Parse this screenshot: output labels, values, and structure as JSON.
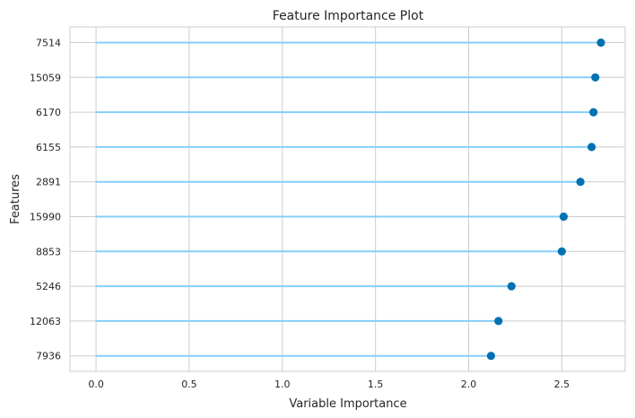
{
  "chart_data": {
    "type": "lollipop",
    "orientation": "horizontal",
    "title": "Feature Importance Plot",
    "xlabel": "Variable Importance",
    "ylabel": "Features",
    "xlim": [
      -0.14,
      2.84
    ],
    "x_ticks": [
      0.0,
      0.5,
      1.0,
      1.5,
      2.0,
      2.5
    ],
    "x_tick_labels": [
      "0.0",
      "0.5",
      "1.0",
      "1.5",
      "2.0",
      "2.5"
    ],
    "grid": true,
    "categories": [
      "7514",
      "15059",
      "6170",
      "6155",
      "2891",
      "15990",
      "8853",
      "5246",
      "12063",
      "7936"
    ],
    "values": [
      2.71,
      2.68,
      2.67,
      2.66,
      2.6,
      2.51,
      2.5,
      2.23,
      2.16,
      2.12
    ],
    "line_color": "#87cefa",
    "marker_color": "#0072b2",
    "grid_color": "#cccccc"
  }
}
